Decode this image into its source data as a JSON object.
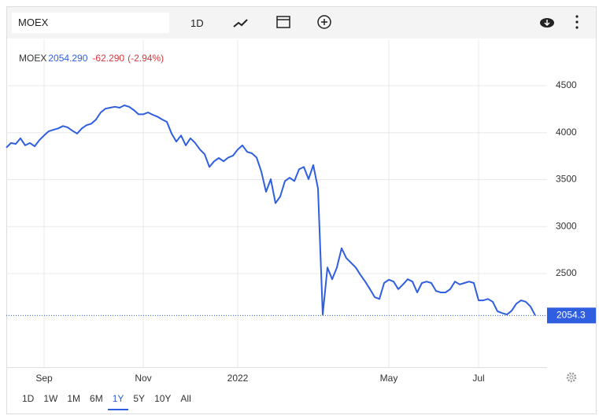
{
  "toolbar": {
    "symbol": "MOEX",
    "interval": "1D"
  },
  "chart_data": {
    "type": "line",
    "legend": {
      "price": "2054.290",
      "change": "-62.290",
      "change_pct": "(-2.94%)"
    },
    "series": [
      {
        "name": "MOEX",
        "color": "#2f5fe0",
        "values": [
          3840,
          3890,
          3880,
          3940,
          3865,
          3890,
          3855,
          3920,
          3970,
          4015,
          4030,
          4045,
          4070,
          4055,
          4020,
          3990,
          4045,
          4080,
          4095,
          4140,
          4215,
          4255,
          4265,
          4275,
          4265,
          4290,
          4275,
          4240,
          4195,
          4195,
          4215,
          4190,
          4170,
          4140,
          4115,
          3990,
          3905,
          3970,
          3865,
          3940,
          3890,
          3820,
          3770,
          3635,
          3695,
          3730,
          3695,
          3735,
          3755,
          3820,
          3865,
          3795,
          3780,
          3735,
          3585,
          3370,
          3505,
          3250,
          3320,
          3485,
          3520,
          3485,
          3610,
          3635,
          3505,
          3655,
          3405,
          2065,
          2565,
          2440,
          2565,
          2770,
          2665,
          2615,
          2565,
          2485,
          2415,
          2335,
          2250,
          2230,
          2400,
          2435,
          2415,
          2335,
          2385,
          2440,
          2415,
          2300,
          2400,
          2415,
          2400,
          2315,
          2300,
          2300,
          2335,
          2415,
          2385,
          2400,
          2415,
          2400,
          2215,
          2215,
          2230,
          2200,
          2100,
          2080,
          2065,
          2105,
          2180,
          2215,
          2200,
          2150,
          2054.29
        ]
      }
    ],
    "xlim": [
      0,
      114.5
    ],
    "xticks": [
      {
        "value": 8,
        "label": "Sep"
      },
      {
        "value": 29,
        "label": "Nov"
      },
      {
        "value": 49,
        "label": "2022"
      },
      {
        "value": 81,
        "label": "May"
      },
      {
        "value": 100,
        "label": "Jul"
      }
    ],
    "ylim": [
      1505,
      4993
    ],
    "yticks": [
      2500,
      3000,
      3500,
      4000,
      4500
    ],
    "grid": true,
    "last_value": {
      "value": 2054.29,
      "label": "2054.3"
    }
  },
  "ranges": {
    "buttons": [
      "1D",
      "1W",
      "1M",
      "6M",
      "1Y",
      "5Y",
      "10Y",
      "All"
    ],
    "selected": 4
  }
}
